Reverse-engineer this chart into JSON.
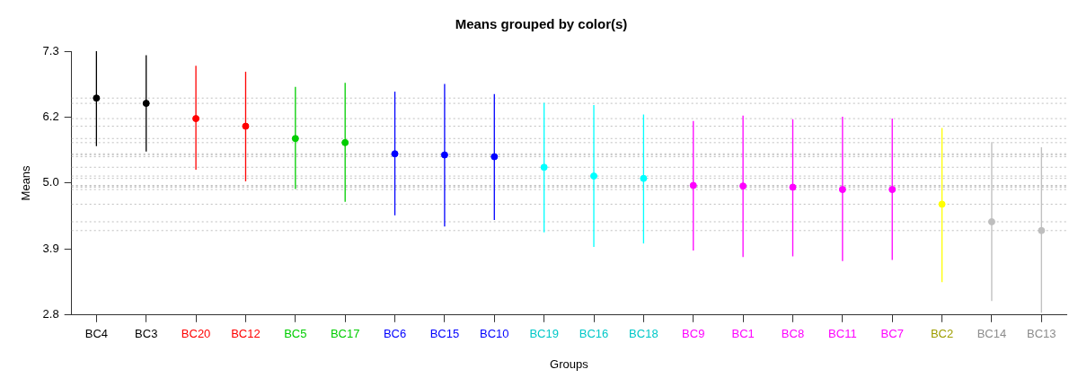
{
  "chart_data": {
    "type": "scatter",
    "title": "Means grouped by color(s)",
    "xlabel": "Groups",
    "ylabel": "Means",
    "categories": [
      "BC4",
      "BC3",
      "BC20",
      "BC12",
      "BC5",
      "BC17",
      "BC6",
      "BC15",
      "BC10",
      "BC19",
      "BC16",
      "BC18",
      "BC9",
      "BC1",
      "BC8",
      "BC11",
      "BC7",
      "BC2",
      "BC14",
      "BC13"
    ],
    "values": [
      6.5,
      6.41,
      6.15,
      6.02,
      5.81,
      5.74,
      5.55,
      5.53,
      5.5,
      5.32,
      5.17,
      5.13,
      5.01,
      5.0,
      4.98,
      4.94,
      4.94,
      4.69,
      4.39,
      4.24
    ],
    "errors": [
      [
        5.68,
        7.3
      ],
      [
        5.59,
        7.23
      ],
      [
        5.28,
        7.05
      ],
      [
        5.08,
        6.95
      ],
      [
        4.95,
        6.69
      ],
      [
        4.73,
        6.76
      ],
      [
        4.5,
        6.61
      ],
      [
        4.31,
        6.74
      ],
      [
        4.42,
        6.57
      ],
      [
        4.21,
        6.42
      ],
      [
        3.96,
        6.38
      ],
      [
        4.02,
        6.22
      ],
      [
        3.9,
        6.11
      ],
      [
        3.79,
        6.2
      ],
      [
        3.8,
        6.14
      ],
      [
        3.72,
        6.18
      ],
      [
        3.74,
        6.15
      ],
      [
        3.36,
        5.99
      ],
      [
        3.04,
        5.75
      ],
      [
        2.84,
        5.66
      ]
    ],
    "colors": [
      "#000000",
      "#000000",
      "#ff0000",
      "#ff0000",
      "#00cd00",
      "#00cd00",
      "#0000ff",
      "#0000ff",
      "#0000ff",
      "#00ffff",
      "#00ffff",
      "#00ffff",
      "#ff00ff",
      "#ff00ff",
      "#ff00ff",
      "#ff00ff",
      "#ff00ff",
      "#ffff00",
      "#bebebe",
      "#bebebe"
    ],
    "ylim": [
      2.8,
      7.3
    ],
    "yticks": [
      {
        "value": 2.8,
        "label": "2.8"
      },
      {
        "value": 3.925,
        "label": "3.9"
      },
      {
        "value": 5.05,
        "label": "5.0"
      },
      {
        "value": 6.175,
        "label": "6.2"
      },
      {
        "value": 7.3,
        "label": "7.3"
      }
    ],
    "ref_lines": [
      {
        "axis": "y",
        "value": 6.5,
        "color": "#bebebe",
        "line_style": "dotted"
      },
      {
        "axis": "y",
        "value": 6.41,
        "color": "#bebebe",
        "line_style": "dotted"
      },
      {
        "axis": "y",
        "value": 6.15,
        "color": "#bebebe",
        "line_style": "dotted"
      },
      {
        "axis": "y",
        "value": 6.02,
        "color": "#bebebe",
        "line_style": "dotted"
      },
      {
        "axis": "y",
        "value": 5.81,
        "color": "#bebebe",
        "line_style": "dotted"
      },
      {
        "axis": "y",
        "value": 5.74,
        "color": "#bebebe",
        "line_style": "dotted"
      },
      {
        "axis": "y",
        "value": 5.55,
        "color": "#bebebe",
        "line_style": "dotted"
      },
      {
        "axis": "y",
        "value": 5.53,
        "color": "#bebebe",
        "line_style": "dotted"
      },
      {
        "axis": "y",
        "value": 5.5,
        "color": "#bebebe",
        "line_style": "dotted"
      },
      {
        "axis": "y",
        "value": 5.32,
        "color": "#bebebe",
        "line_style": "dotted"
      },
      {
        "axis": "y",
        "value": 5.17,
        "color": "#bebebe",
        "line_style": "dotted"
      },
      {
        "axis": "y",
        "value": 5.13,
        "color": "#bebebe",
        "line_style": "dotted"
      },
      {
        "axis": "y",
        "value": 5.01,
        "color": "#bebebe",
        "line_style": "dotted"
      },
      {
        "axis": "y",
        "value": 5.0,
        "color": "#bebebe",
        "line_style": "dotted"
      },
      {
        "axis": "y",
        "value": 4.98,
        "color": "#bebebe",
        "line_style": "dotted"
      },
      {
        "axis": "y",
        "value": 4.94,
        "color": "#bebebe",
        "line_style": "dotted"
      },
      {
        "axis": "y",
        "value": 4.69,
        "color": "#bebebe",
        "line_style": "dotted"
      },
      {
        "axis": "y",
        "value": 4.39,
        "color": "#bebebe",
        "line_style": "dotted"
      },
      {
        "axis": "y",
        "value": 4.24,
        "color": "#bebebe",
        "line_style": "dotted"
      }
    ],
    "marker": "circle",
    "grid": false,
    "legend": false
  }
}
